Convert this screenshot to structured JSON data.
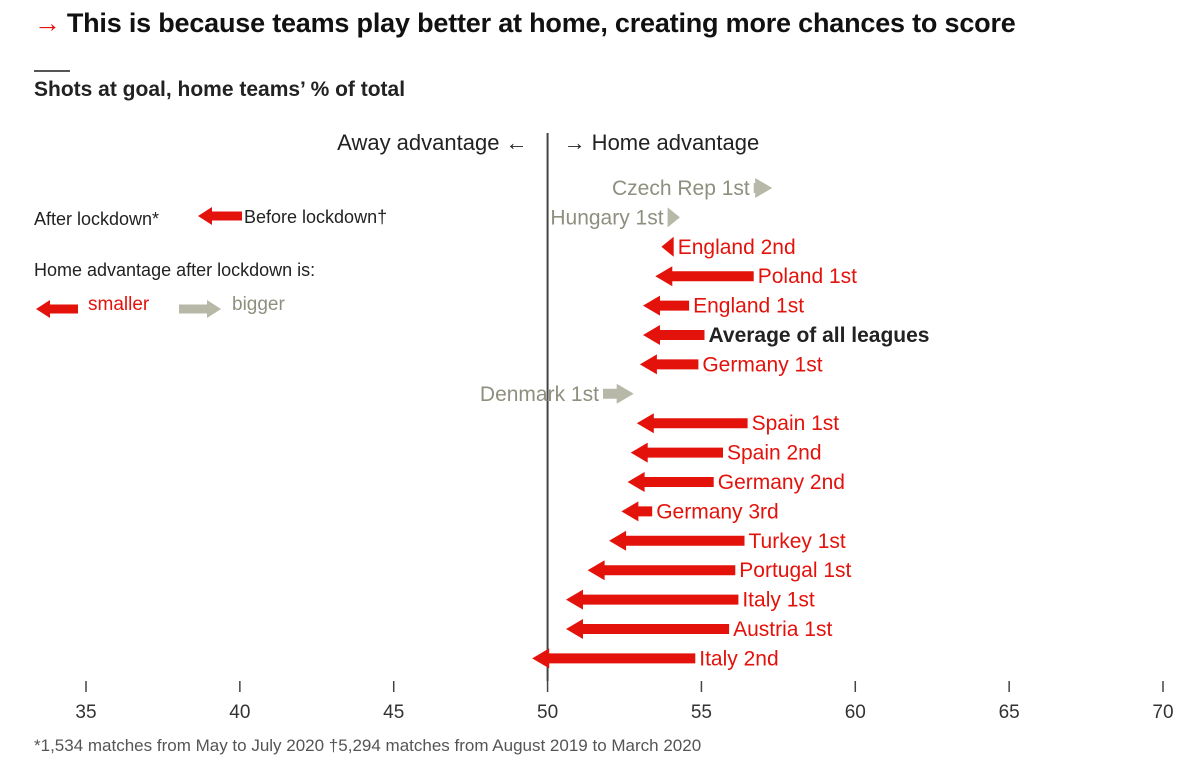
{
  "title": "This is because teams play better at home, creating more chances to score",
  "title_arrow": "→",
  "subtitle": "Shots at goal, home teams’ % of total",
  "footnote": "*1,534 matches from May to July 2020 †5,294 matches from August 2019 to March 2020",
  "colors": {
    "smaller": "#e3120b",
    "bigger": "#b8b8a8",
    "bigger_text": "#8f8f7f",
    "axis": "#444444",
    "bold_label": "#222222"
  },
  "chart_data": {
    "type": "arrow",
    "x_axis": {
      "min": 35,
      "max": 70,
      "ticks": [
        35,
        40,
        45,
        50,
        55,
        60,
        65,
        70
      ]
    },
    "reference_line": 50,
    "direction_labels": {
      "left": "Away advantage ←",
      "right": "→ Home advantage"
    },
    "legend": {
      "after": "After lockdown*",
      "before": "Before lockdown†",
      "heading": "Home advantage after lockdown is:",
      "smaller": "smaller",
      "bigger": "bigger"
    },
    "series": [
      {
        "name": "Czech Rep 1st",
        "before": 56.7,
        "after": 57.3,
        "change": "bigger"
      },
      {
        "name": "Hungary 1st",
        "before": 53.9,
        "after": 54.3,
        "change": "bigger"
      },
      {
        "name": "England 2nd",
        "before": 54.1,
        "after": 53.7,
        "change": "smaller"
      },
      {
        "name": "Poland 1st",
        "before": 56.7,
        "after": 53.5,
        "change": "smaller"
      },
      {
        "name": "England 1st",
        "before": 54.6,
        "after": 53.1,
        "change": "smaller"
      },
      {
        "name": "Average of all leagues",
        "before": 55.1,
        "after": 53.1,
        "change": "smaller",
        "bold": true
      },
      {
        "name": "Germany 1st",
        "before": 54.9,
        "after": 53.0,
        "change": "smaller"
      },
      {
        "name": "Denmark 1st",
        "before": 51.8,
        "after": 52.8,
        "change": "bigger"
      },
      {
        "name": "Spain 1st",
        "before": 56.5,
        "after": 52.9,
        "change": "smaller"
      },
      {
        "name": "Spain 2nd",
        "before": 55.7,
        "after": 52.7,
        "change": "smaller"
      },
      {
        "name": "Germany 2nd",
        "before": 55.4,
        "after": 52.6,
        "change": "smaller"
      },
      {
        "name": "Germany 3rd",
        "before": 53.4,
        "after": 52.4,
        "change": "smaller"
      },
      {
        "name": "Turkey 1st",
        "before": 56.4,
        "after": 52.0,
        "change": "smaller"
      },
      {
        "name": "Portugal 1st",
        "before": 56.1,
        "after": 51.3,
        "change": "smaller"
      },
      {
        "name": "Italy 1st",
        "before": 56.2,
        "after": 50.6,
        "change": "smaller"
      },
      {
        "name": "Austria 1st",
        "before": 55.9,
        "after": 50.6,
        "change": "smaller"
      },
      {
        "name": "Italy 2nd",
        "before": 54.8,
        "after": 49.5,
        "change": "smaller"
      }
    ]
  }
}
